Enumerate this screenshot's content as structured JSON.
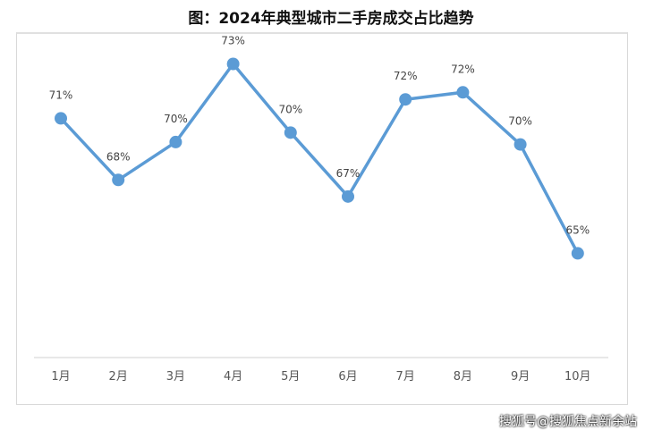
{
  "chart_data": {
    "type": "line",
    "title": "图：2024年典型城市二手房成交占比趋势",
    "xlabel": "",
    "ylabel": "",
    "categories": [
      "1月",
      "2月",
      "3月",
      "4月",
      "5月",
      "6月",
      "7月",
      "8月",
      "9月",
      "10月"
    ],
    "series": [
      {
        "name": "二手房成交占比",
        "values": [
          70.7,
          68.1,
          69.7,
          73.0,
          70.1,
          67.4,
          71.5,
          71.8,
          69.6,
          65.0
        ]
      }
    ],
    "data_labels": [
      "71%",
      "68%",
      "70%",
      "73%",
      "70%",
      "67%",
      "72%",
      "72%",
      "70%",
      "65%"
    ],
    "ylim": [
      60.6,
      74.0
    ],
    "grid": false,
    "color": "#5b9bd5"
  },
  "watermark": "搜狐号@搜狐焦点新余站"
}
